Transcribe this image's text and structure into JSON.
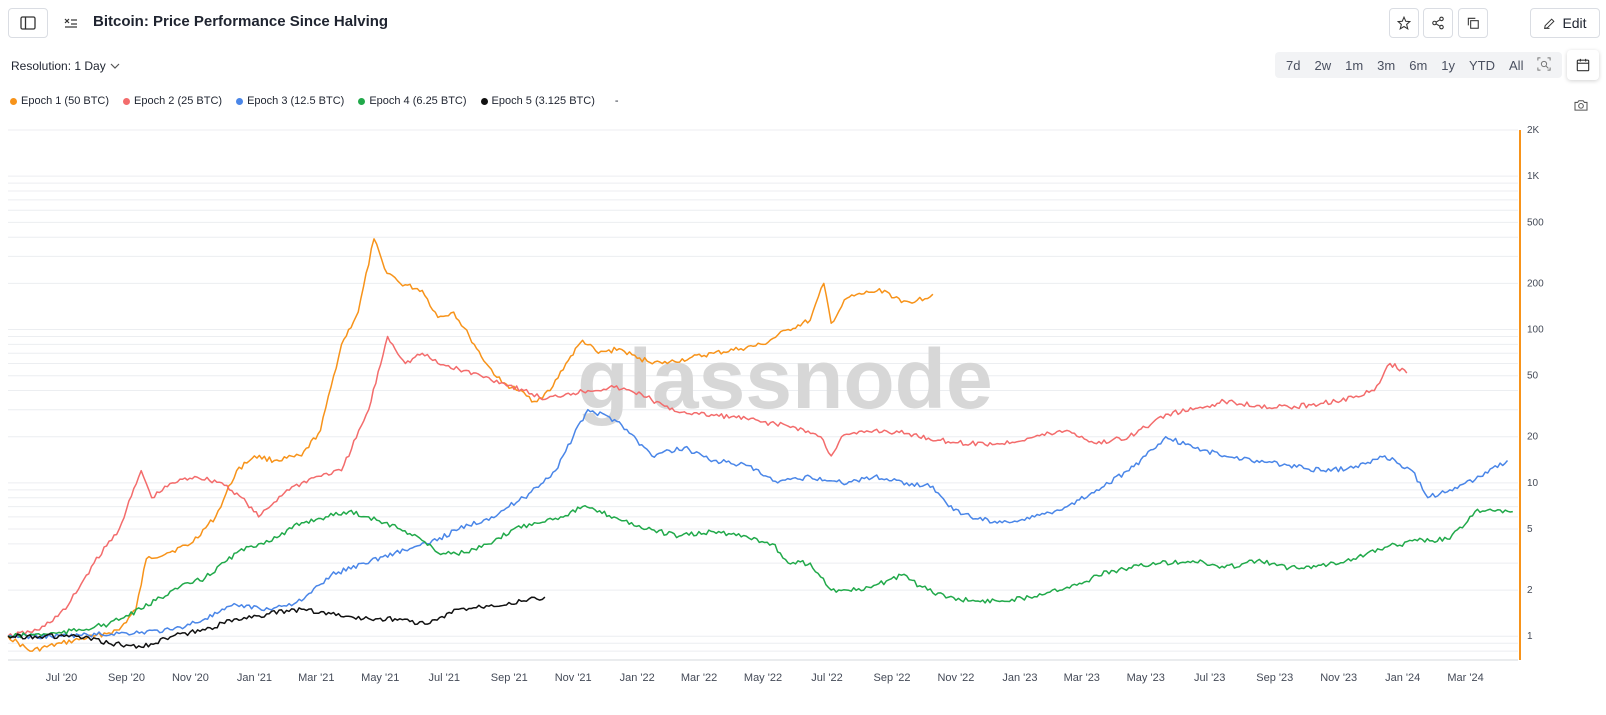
{
  "header": {
    "title": "Bitcoin: Price Performance Since Halving",
    "edit_label": "Edit"
  },
  "controls": {
    "resolution_label": "Resolution: 1 Day",
    "ranges": [
      "7d",
      "2w",
      "1m",
      "3m",
      "6m",
      "1y",
      "YTD",
      "All"
    ]
  },
  "legend": {
    "extra": "-"
  },
  "watermark": "glassnode",
  "colors": {
    "accent_axis": "#f7931a"
  },
  "chart_data": {
    "type": "line",
    "title": "Bitcoin: Price Performance Since Halving",
    "y_scale": "log",
    "ylim": [
      0.7,
      2000
    ],
    "yticks": [
      1,
      2,
      5,
      10,
      20,
      50,
      100,
      200,
      500,
      1000,
      2000
    ],
    "ytick_labels": [
      "1",
      "2",
      "5",
      "10",
      "20",
      "50",
      "100",
      "200",
      "500",
      "1K",
      "2K"
    ],
    "xlim": [
      "2020-05-11",
      "2024-04-20"
    ],
    "xtick_labels": [
      "Jul '20",
      "Sep '20",
      "Nov '20",
      "Jan '21",
      "Mar '21",
      "May '21",
      "Jul '21",
      "Sep '21",
      "Nov '21",
      "Jan '22",
      "Mar '22",
      "May '22",
      "Jul '22",
      "Sep '22",
      "Nov '22",
      "Jan '23",
      "Mar '23",
      "May '23",
      "Jul '23",
      "Sep '23",
      "Nov '23",
      "Jan '24",
      "Mar '24"
    ],
    "xtick_dates": [
      "2020-07-01",
      "2020-09-01",
      "2020-11-01",
      "2021-01-01",
      "2021-03-01",
      "2021-05-01",
      "2021-07-01",
      "2021-09-01",
      "2021-11-01",
      "2022-01-01",
      "2022-03-01",
      "2022-05-01",
      "2022-07-01",
      "2022-09-01",
      "2022-11-01",
      "2023-01-01",
      "2023-03-01",
      "2023-05-01",
      "2023-07-01",
      "2023-09-01",
      "2023-11-01",
      "2024-01-01",
      "2024-03-01"
    ],
    "grid": true,
    "legend_position": "top-left",
    "series": [
      {
        "name": "Epoch 1 (50 BTC)",
        "color": "#f7931a",
        "x": [
          "2020-05-11",
          "2020-06-01",
          "2020-07-01",
          "2020-08-01",
          "2020-08-25",
          "2020-09-10",
          "2020-09-20",
          "2020-10-10",
          "2020-11-01",
          "2020-11-25",
          "2020-12-15",
          "2021-01-01",
          "2021-01-20",
          "2021-02-15",
          "2021-03-05",
          "2021-03-25",
          "2021-04-10",
          "2021-04-25",
          "2021-05-05",
          "2021-05-20",
          "2021-06-10",
          "2021-06-25",
          "2021-07-10",
          "2021-07-25",
          "2021-08-10",
          "2021-08-25",
          "2021-09-10",
          "2021-09-25",
          "2021-10-10",
          "2021-10-25",
          "2021-11-10",
          "2021-11-25",
          "2021-12-15",
          "2022-01-01",
          "2022-01-25",
          "2022-02-20",
          "2022-03-15",
          "2022-04-10",
          "2022-05-01",
          "2022-05-25",
          "2022-06-15",
          "2022-06-28",
          "2022-07-05",
          "2022-07-20",
          "2022-08-10",
          "2022-08-25",
          "2022-09-10",
          "2022-09-25",
          "2022-10-10"
        ],
        "y": [
          1.0,
          0.8,
          0.9,
          1.0,
          1.1,
          1.5,
          3.2,
          3.5,
          4.0,
          6.0,
          12.0,
          15.0,
          14.0,
          15.0,
          22.0,
          80.0,
          130.0,
          390.0,
          250.0,
          200.0,
          180.0,
          120.0,
          130.0,
          90.0,
          60.0,
          45.0,
          40.0,
          34.0,
          40.0,
          60.0,
          85.0,
          70.0,
          75.0,
          65.0,
          60.0,
          65.0,
          70.0,
          75.0,
          80.0,
          100.0,
          115.0,
          200.0,
          110.0,
          160.0,
          175.0,
          180.0,
          150.0,
          155.0,
          170.0
        ]
      },
      {
        "name": "Epoch 2 (25 BTC)",
        "color": "#f36c6c",
        "x": [
          "2020-05-11",
          "2020-06-10",
          "2020-07-05",
          "2020-08-01",
          "2020-08-25",
          "2020-09-15",
          "2020-09-25",
          "2020-10-15",
          "2020-11-05",
          "2020-12-01",
          "2020-12-20",
          "2021-01-05",
          "2021-02-01",
          "2021-03-01",
          "2021-03-25",
          "2021-04-20",
          "2021-05-08",
          "2021-05-25",
          "2021-06-10",
          "2021-06-25",
          "2021-07-15",
          "2021-08-05",
          "2021-08-25",
          "2021-09-15",
          "2021-10-05",
          "2021-10-25",
          "2021-11-15",
          "2021-12-10",
          "2022-01-05",
          "2022-02-01",
          "2022-03-01",
          "2022-04-01",
          "2022-05-01",
          "2022-06-01",
          "2022-06-25",
          "2022-07-05",
          "2022-07-15",
          "2022-08-15",
          "2022-09-15",
          "2022-10-15",
          "2022-11-15",
          "2022-12-15",
          "2023-01-15",
          "2023-02-15",
          "2023-03-15",
          "2023-04-15",
          "2023-05-01",
          "2023-05-20",
          "2023-06-15",
          "2023-07-15",
          "2023-08-15",
          "2023-09-15",
          "2023-10-15",
          "2023-11-15",
          "2023-12-05",
          "2023-12-20",
          "2024-01-05"
        ],
        "y": [
          1.0,
          1.1,
          1.5,
          3.0,
          5.0,
          12.0,
          8.0,
          10.0,
          11.0,
          10.0,
          8.0,
          6.0,
          9.0,
          11.0,
          12.0,
          30.0,
          90.0,
          60.0,
          70.0,
          60.0,
          55.0,
          50.0,
          45.0,
          40.0,
          35.0,
          38.0,
          40.0,
          42.0,
          38.0,
          30.0,
          28.0,
          27.0,
          25.0,
          23.0,
          20.0,
          15.0,
          20.0,
          22.0,
          21.0,
          19.0,
          18.0,
          18.0,
          20.0,
          22.0,
          18.0,
          20.0,
          23.0,
          28.0,
          30.0,
          34.0,
          32.0,
          31.0,
          33.0,
          36.0,
          40.0,
          60.0,
          52.0
        ]
      },
      {
        "name": "Epoch 3 (12.5 BTC)",
        "color": "#4a86e8",
        "x": [
          "2020-05-11",
          "2020-07-01",
          "2020-09-01",
          "2020-10-15",
          "2020-11-15",
          "2020-12-15",
          "2021-01-15",
          "2021-02-15",
          "2021-03-15",
          "2021-04-15",
          "2021-05-15",
          "2021-06-15",
          "2021-07-15",
          "2021-08-15",
          "2021-09-15",
          "2021-10-15",
          "2021-11-01",
          "2021-11-15",
          "2021-12-15",
          "2022-01-15",
          "2022-02-15",
          "2022-03-15",
          "2022-04-15",
          "2022-05-15",
          "2022-06-15",
          "2022-07-15",
          "2022-08-15",
          "2022-09-15",
          "2022-10-10",
          "2022-10-25",
          "2022-11-15",
          "2022-12-15",
          "2023-01-15",
          "2023-02-15",
          "2023-03-15",
          "2023-04-15",
          "2023-05-01",
          "2023-05-20",
          "2023-06-15",
          "2023-07-15",
          "2023-08-15",
          "2023-09-15",
          "2023-10-15",
          "2023-11-15",
          "2023-12-15",
          "2024-01-10",
          "2024-01-25",
          "2024-02-15",
          "2024-03-15",
          "2024-04-10"
        ],
        "y": [
          1.0,
          1.0,
          1.05,
          1.1,
          1.3,
          1.6,
          1.5,
          1.7,
          2.5,
          3.0,
          3.5,
          4.0,
          5.0,
          6.0,
          8.0,
          12.0,
          20.0,
          30.0,
          25.0,
          15.0,
          17.0,
          14.0,
          13.0,
          10.0,
          11.0,
          10.0,
          11.0,
          10.0,
          9.5,
          7.0,
          6.0,
          5.5,
          6.0,
          7.0,
          9.0,
          12.0,
          15.0,
          20.0,
          17.0,
          15.0,
          14.0,
          13.0,
          12.0,
          12.5,
          15.0,
          12.0,
          8.0,
          9.0,
          11.0,
          14.0
        ]
      },
      {
        "name": "Epoch 4 (6.25 BTC)",
        "color": "#21a94a",
        "x": [
          "2020-05-11",
          "2020-07-01",
          "2020-08-15",
          "2020-09-15",
          "2020-10-15",
          "2020-11-15",
          "2020-12-15",
          "2021-01-05",
          "2021-01-25",
          "2021-02-15",
          "2021-03-10",
          "2021-04-01",
          "2021-04-20",
          "2021-05-05",
          "2021-05-20",
          "2021-06-05",
          "2021-06-25",
          "2021-07-20",
          "2021-08-15",
          "2021-09-05",
          "2021-09-25",
          "2021-10-20",
          "2021-11-10",
          "2021-12-10",
          "2022-01-10",
          "2022-02-10",
          "2022-03-15",
          "2022-04-15",
          "2022-05-10",
          "2022-05-25",
          "2022-06-15",
          "2022-07-05",
          "2022-08-05",
          "2022-09-10",
          "2022-10-05",
          "2022-10-25",
          "2022-11-15",
          "2022-12-15",
          "2023-01-10",
          "2023-02-01",
          "2023-03-01",
          "2023-03-15",
          "2023-04-15",
          "2023-05-15",
          "2023-06-15",
          "2023-07-15",
          "2023-08-15",
          "2023-09-15",
          "2023-10-15",
          "2023-11-15",
          "2023-12-15",
          "2024-01-15",
          "2024-02-15",
          "2024-03-10",
          "2024-04-15"
        ],
        "y": [
          1.0,
          1.05,
          1.2,
          1.5,
          2.0,
          2.4,
          3.5,
          4.0,
          4.5,
          5.5,
          6.0,
          6.5,
          6.0,
          5.5,
          5.0,
          4.5,
          3.5,
          3.5,
          4.0,
          5.0,
          5.5,
          6.0,
          7.0,
          6.0,
          5.0,
          4.5,
          4.8,
          4.5,
          4.0,
          3.0,
          3.0,
          2.0,
          2.0,
          2.5,
          2.0,
          1.8,
          1.7,
          1.7,
          1.8,
          2.0,
          2.2,
          2.5,
          2.8,
          3.0,
          3.1,
          2.8,
          3.1,
          2.8,
          2.9,
          3.2,
          3.8,
          4.2,
          4.3,
          6.5,
          6.5
        ]
      },
      {
        "name": "Epoch 5 (3.125 BTC)",
        "color": "#111111",
        "x": [
          "2020-05-11",
          "2020-06-15",
          "2020-07-15",
          "2020-08-15",
          "2020-09-15",
          "2020-10-15",
          "2020-11-15",
          "2020-12-15",
          "2021-01-15",
          "2021-02-15",
          "2021-03-15",
          "2021-04-15",
          "2021-05-15",
          "2021-06-15",
          "2021-07-15",
          "2021-08-15",
          "2021-09-15",
          "2021-10-05"
        ],
        "y": [
          1.0,
          1.0,
          1.0,
          0.9,
          0.85,
          1.0,
          1.1,
          1.3,
          1.4,
          1.5,
          1.4,
          1.3,
          1.3,
          1.2,
          1.5,
          1.6,
          1.7,
          1.8
        ]
      }
    ]
  }
}
